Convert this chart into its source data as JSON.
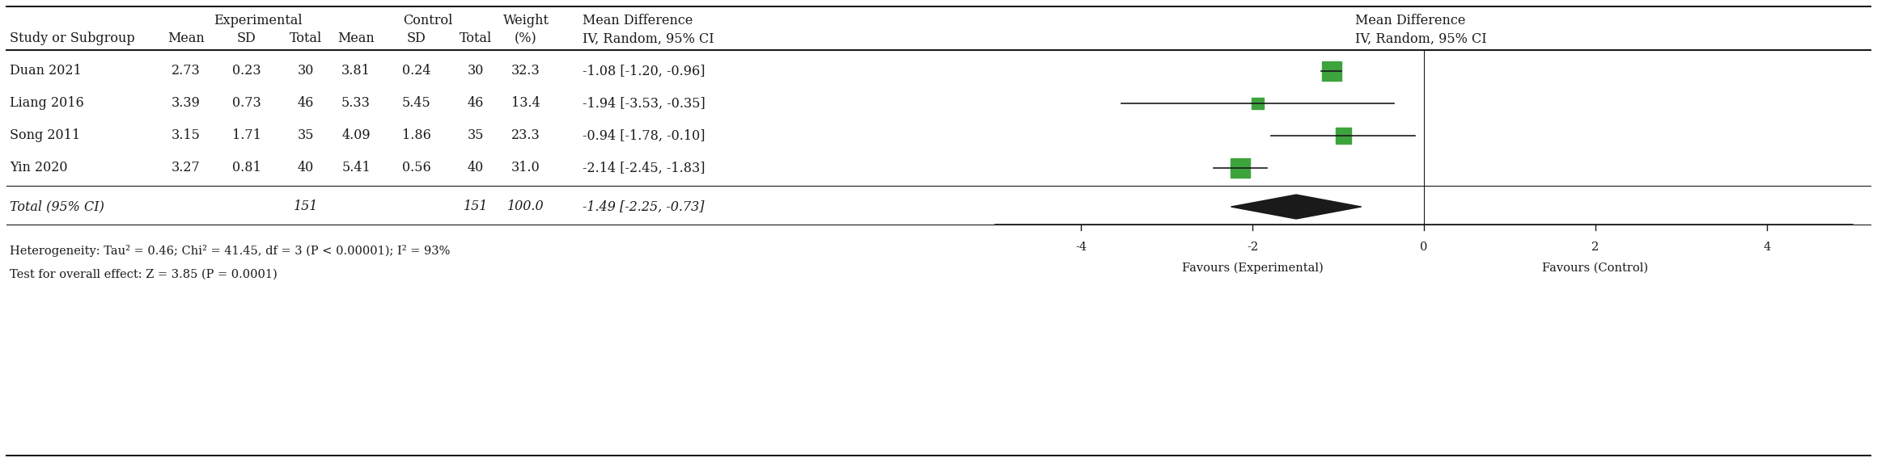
{
  "studies": [
    "Duan 2021",
    "Liang 2016",
    "Song 2011",
    "Yin 2020"
  ],
  "exp_mean": [
    "2.73",
    "3.39",
    "3.15",
    "3.27"
  ],
  "exp_sd": [
    "0.23",
    "0.73",
    "1.71",
    "0.81"
  ],
  "exp_total": [
    "30",
    "46",
    "35",
    "40"
  ],
  "ctrl_mean": [
    "3.81",
    "5.33",
    "4.09",
    "5.41"
  ],
  "ctrl_sd": [
    "0.24",
    "5.45",
    "1.86",
    "0.56"
  ],
  "ctrl_total": [
    "30",
    "46",
    "35",
    "40"
  ],
  "weight": [
    "32.3",
    "13.4",
    "23.3",
    "31.0"
  ],
  "weight_num": [
    32.3,
    13.4,
    23.3,
    31.0
  ],
  "md": [
    -1.08,
    -1.94,
    -0.94,
    -2.14
  ],
  "ci_low": [
    -1.2,
    -3.53,
    -1.78,
    -2.45
  ],
  "ci_high": [
    -0.96,
    -0.35,
    -0.1,
    -1.83
  ],
  "md_str": [
    "-1.08 [-1.20, -0.96]",
    "-1.94 [-3.53, -0.35]",
    "-0.94 [-1.78, -0.10]",
    "-2.14 [-2.45, -1.83]"
  ],
  "total_exp": "151",
  "total_ctrl": "151",
  "total_weight": "100.0",
  "total_md": -1.49,
  "total_ci_low": -2.25,
  "total_ci_high": -0.73,
  "total_md_str": "-1.49 [-2.25, -0.73]",
  "hetero_line1": "Heterogeneity: Tau² = 0.46; Chi² = 41.45, df = 3 (P < 0.00001); I² = 93%",
  "hetero_line2": "Test for overall effect: Z = 3.85 (P = 0.0001)",
  "forest_xlim": [
    -5.0,
    5.0
  ],
  "forest_xticks": [
    -4,
    -2,
    0,
    2,
    4
  ],
  "square_color": "#3da33d",
  "diamond_color": "#1a1a1a",
  "line_color": "#1a1a1a",
  "bg_color": "#ffffff"
}
